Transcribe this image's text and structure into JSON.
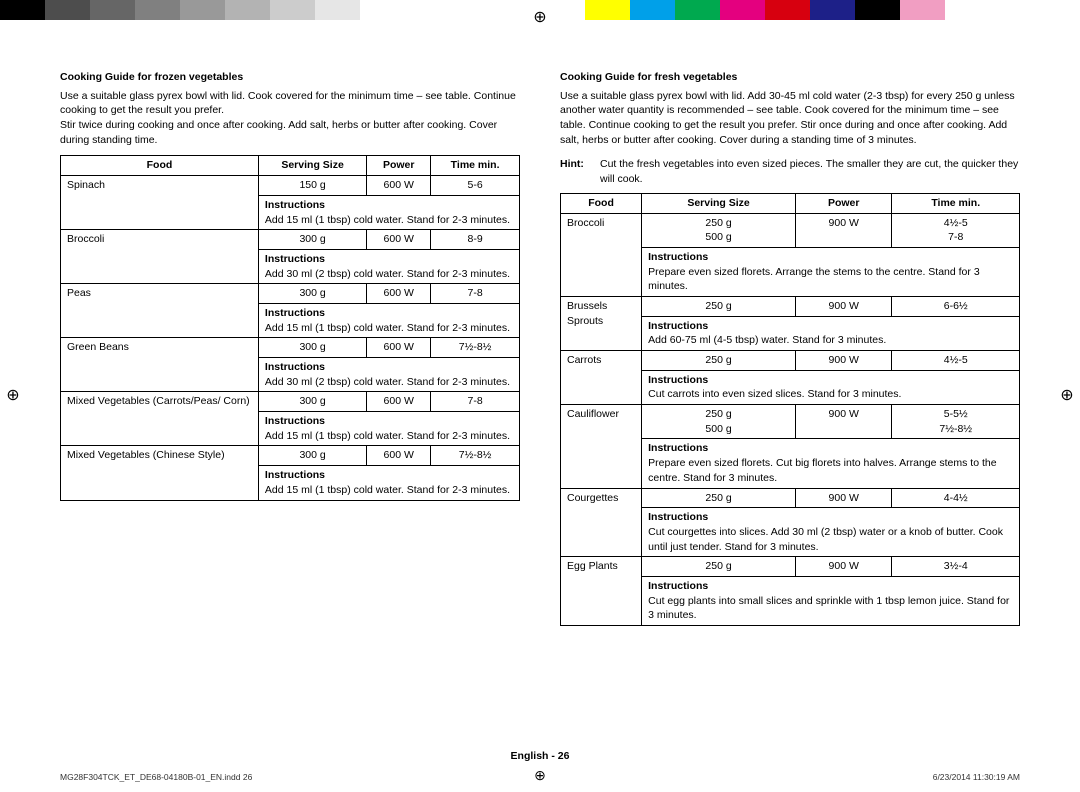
{
  "colorbar_left": [
    "#000000",
    "#4d4d4d",
    "#666666",
    "#808080",
    "#999999",
    "#b3b3b3",
    "#cccccc",
    "#e6e6e6",
    "#ffffff",
    "#ffffff",
    "#ffffff",
    "#ffffff"
  ],
  "colorbar_right": [
    "#ffffff",
    "#ffff00",
    "#00a0e9",
    "#00a94f",
    "#e4007f",
    "#d7000f",
    "#1d2088",
    "#000000",
    "#f19ec2",
    "#ffffff",
    "#ffffff",
    "#ffffff"
  ],
  "left": {
    "title": "Cooking Guide for frozen vegetables",
    "intro": "Use a suitable glass pyrex bowl with lid. Cook covered for the minimum time – see table. Continue cooking to get the result you prefer.\nStir twice during cooking and once after cooking. Add salt, herbs or butter after cooking. Cover during standing time.",
    "headers": [
      "Food",
      "Serving Size",
      "Power",
      "Time min."
    ],
    "rows": [
      {
        "food": "Spinach",
        "size": "150 g",
        "power": "600 W",
        "time": "5-6",
        "instr": "Add 15 ml (1 tbsp) cold water. Stand for 2-3 minutes."
      },
      {
        "food": "Broccoli",
        "size": "300 g",
        "power": "600 W",
        "time": "8-9",
        "instr": "Add 30 ml (2 tbsp) cold water. Stand for 2-3 minutes."
      },
      {
        "food": "Peas",
        "size": "300 g",
        "power": "600 W",
        "time": "7-8",
        "instr": "Add 15 ml (1 tbsp) cold water. Stand for 2-3 minutes."
      },
      {
        "food": "Green Beans",
        "size": "300 g",
        "power": "600 W",
        "time": "7½-8½",
        "instr": "Add 30 ml (2 tbsp) cold water. Stand for 2-3 minutes."
      },
      {
        "food": "Mixed Vegetables (Carrots/Peas/ Corn)",
        "size": "300 g",
        "power": "600 W",
        "time": "7-8",
        "instr": "Add 15 ml (1 tbsp) cold water. Stand for 2-3 minutes."
      },
      {
        "food": "Mixed Vegetables (Chinese Style)",
        "size": "300 g",
        "power": "600 W",
        "time": "7½-8½",
        "instr": "Add 15 ml (1 tbsp) cold water. Stand for 2-3 minutes."
      }
    ]
  },
  "right": {
    "title": "Cooking Guide for fresh vegetables",
    "intro": "Use a suitable glass pyrex bowl with lid. Add 30-45 ml cold water (2-3 tbsp) for every 250 g unless another water quantity is recommended – see table. Cook covered for the minimum time – see table. Continue cooking to get the result you prefer. Stir once during and once after cooking. Add salt, herbs or butter after cooking. Cover during a standing time of 3 minutes.",
    "hint_label": "Hint:",
    "hint_text": "Cut the fresh vegetables into even sized pieces. The smaller they are cut, the quicker they will cook.",
    "headers": [
      "Food",
      "Serving Size",
      "Power",
      "Time min."
    ],
    "rows": [
      {
        "food": "Broccoli",
        "size": "250 g\n500 g",
        "power": "900 W",
        "time": "4½-5\n7-8",
        "instr": "Prepare even sized florets. Arrange the stems to the centre. Stand for 3 minutes."
      },
      {
        "food": "Brussels Sprouts",
        "size": "250 g",
        "power": "900 W",
        "time": "6-6½",
        "instr": "Add 60-75 ml (4-5 tbsp) water. Stand for 3 minutes."
      },
      {
        "food": "Carrots",
        "size": "250 g",
        "power": "900 W",
        "time": "4½-5",
        "instr": "Cut carrots into even sized slices. Stand for 3 minutes."
      },
      {
        "food": "Cauliflower",
        "size": "250 g\n500 g",
        "power": "900 W",
        "time": "5-5½\n7½-8½",
        "instr": "Prepare even sized florets. Cut big florets into halves. Arrange stems to the centre. Stand for 3 minutes."
      },
      {
        "food": "Courgettes",
        "size": "250 g",
        "power": "900 W",
        "time": "4-4½",
        "instr": "Cut courgettes into slices. Add 30 ml (2 tbsp) water or a knob of butter. Cook until just tender. Stand for 3 minutes."
      },
      {
        "food": "Egg Plants",
        "size": "250 g",
        "power": "900 W",
        "time": "3½-4",
        "instr": "Cut egg plants into small slices and sprinkle with 1 tbsp lemon juice. Stand for 3 minutes."
      }
    ]
  },
  "instructions_label": "Instructions",
  "page_footer": "English - 26",
  "doc_id": "MG28F304TCK_ET_DE68-04180B-01_EN.indd   26",
  "timestamp": "6/23/2014   11:30:19 AM"
}
